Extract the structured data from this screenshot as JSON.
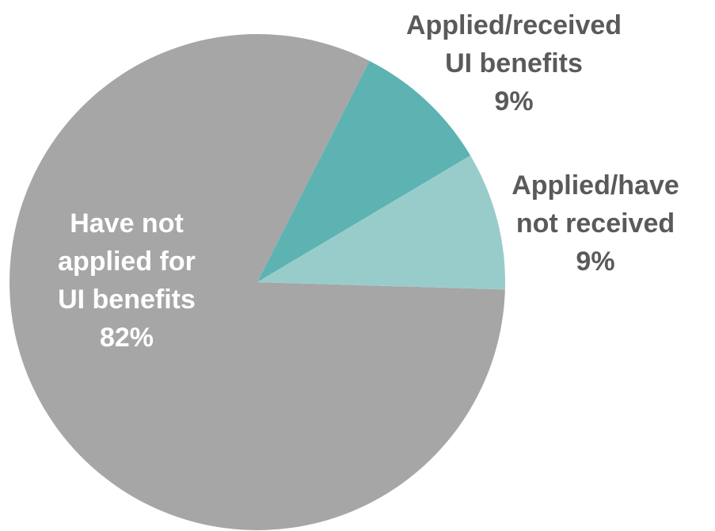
{
  "chart_data": {
    "type": "pie",
    "title": "",
    "slices": [
      {
        "name": "Have not applied for UI benefits",
        "value": 82,
        "value_label": "82%",
        "label_lines": [
          "Have not",
          "applied for",
          "UI benefits"
        ],
        "color": "#a6a6a6",
        "label_color": "#ffffff"
      },
      {
        "name": "Applied/received UI benefits",
        "value": 9,
        "value_label": "9%",
        "label_lines": [
          "Applied/received",
          "UI benefits"
        ],
        "color": "#5cb3b2",
        "label_color": "#5a5a5a"
      },
      {
        "name": "Applied/have not received",
        "value": 9,
        "value_label": "9%",
        "label_lines": [
          "Applied/have",
          "not received"
        ],
        "color": "#98cccb",
        "label_color": "#5a5a5a"
      }
    ]
  }
}
